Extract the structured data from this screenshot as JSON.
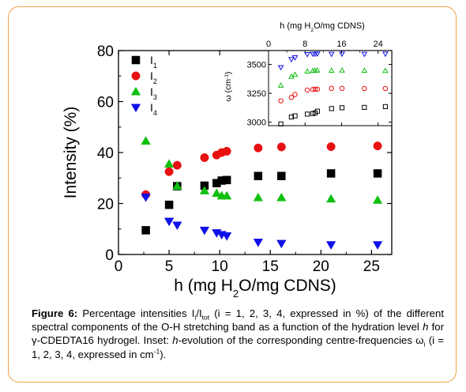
{
  "chart_data": [
    {
      "type": "scatter",
      "xlabel": "h (mg H2O/mg CDNS)",
      "xlabel_parts": [
        "h (mg H",
        "2",
        "O/mg CDNS)"
      ],
      "ylabel": "Intensity (%)",
      "xlim": [
        0,
        27
      ],
      "ylim": [
        0,
        80
      ],
      "xticks": [
        0,
        5,
        10,
        15,
        20,
        25
      ],
      "yticks": [
        0,
        20,
        40,
        60,
        80
      ],
      "grid": false,
      "legend": "top-left",
      "series": [
        {
          "name": "I1",
          "label_main": "I",
          "label_sub": "1",
          "marker": "square",
          "color": "#000000",
          "x": [
            2.7,
            5.0,
            5.8,
            8.5,
            9.7,
            10.2,
            10.7,
            13.8,
            16.1,
            21.0,
            25.6
          ],
          "y": [
            9.5,
            19.5,
            26.8,
            27.0,
            28.0,
            29.0,
            29.2,
            30.8,
            30.8,
            31.8,
            31.8
          ]
        },
        {
          "name": "I2",
          "label_main": "I",
          "label_sub": "2",
          "marker": "circle",
          "color": "#e81010",
          "x": [
            2.7,
            5.0,
            5.8,
            8.5,
            9.7,
            10.2,
            10.7,
            13.8,
            16.1,
            21.0,
            25.6
          ],
          "y": [
            23.5,
            32.5,
            35.0,
            38.0,
            39.0,
            40.0,
            40.5,
            41.8,
            42.2,
            42.3,
            42.6
          ]
        },
        {
          "name": "I3",
          "label_main": "I",
          "label_sub": "3",
          "marker": "triangle-up",
          "color": "#10c010",
          "x": [
            2.7,
            5.0,
            5.8,
            8.5,
            9.7,
            10.2,
            10.7,
            13.8,
            16.1,
            21.0,
            25.6
          ],
          "y": [
            44.5,
            35.5,
            26.8,
            25.0,
            24.0,
            23.0,
            23.0,
            22.3,
            22.3,
            21.8,
            21.3
          ]
        },
        {
          "name": "I4",
          "label_main": "I",
          "label_sub": "4",
          "marker": "triangle-down",
          "color": "#1010e8",
          "x": [
            2.7,
            5.0,
            5.8,
            8.5,
            9.7,
            10.2,
            10.7,
            13.8,
            16.1,
            21.0,
            25.6
          ],
          "y": [
            22.5,
            13.0,
            11.5,
            9.5,
            8.5,
            7.8,
            7.3,
            4.8,
            4.3,
            3.8,
            3.8
          ]
        }
      ]
    },
    {
      "type": "scatter",
      "inset": true,
      "xlabel": "h (mg H2O/mg CDNS)",
      "xlabel_parts": [
        "h (mg H",
        "2",
        "O/mg CDNS)"
      ],
      "ylabel": "ω (cm⁻¹)",
      "ylabel_parts": [
        "ω (cm",
        "-1",
        ")"
      ],
      "xlim": [
        0,
        27
      ],
      "ylim": [
        2970,
        3620
      ],
      "xticks": [
        0,
        8,
        16,
        24
      ],
      "xtick_labels": [
        "0",
        "8",
        "16",
        "24"
      ],
      "minor_xticks": [
        4,
        12,
        20
      ],
      "yticks": [
        3000,
        3250,
        3500
      ],
      "ytick_labels": [
        "3000",
        "3250",
        "3500"
      ],
      "xaxis_position": "top",
      "grid": false,
      "series": [
        {
          "name": "ω1",
          "marker": "square-open",
          "color": "#000000",
          "x": [
            2.7,
            5.0,
            5.8,
            8.5,
            9.7,
            10.2,
            10.7,
            13.8,
            16.1,
            21.0,
            25.6
          ],
          "y": [
            2985,
            3045,
            3055,
            3070,
            3075,
            3080,
            3095,
            3118,
            3125,
            3128,
            3135
          ]
        },
        {
          "name": "ω2",
          "marker": "circle-open",
          "color": "#e81010",
          "x": [
            2.7,
            5.0,
            5.8,
            8.5,
            9.7,
            10.2,
            10.7,
            13.8,
            16.1,
            21.0,
            25.6
          ],
          "y": [
            3185,
            3215,
            3240,
            3278,
            3283,
            3286,
            3286,
            3293,
            3293,
            3292,
            3292
          ]
        },
        {
          "name": "ω3",
          "marker": "triangle-up-open",
          "color": "#10c010",
          "x": [
            2.7,
            5.0,
            5.8,
            8.5,
            9.7,
            10.2,
            10.7,
            13.8,
            16.1,
            21.0,
            25.6
          ],
          "y": [
            3318,
            3395,
            3412,
            3440,
            3445,
            3447,
            3449,
            3447,
            3449,
            3447,
            3445
          ]
        },
        {
          "name": "ω4",
          "marker": "triangle-down-open",
          "color": "#1010e8",
          "x": [
            2.7,
            5.0,
            5.8,
            8.5,
            9.7,
            10.2,
            10.7,
            13.8,
            16.1,
            21.0,
            25.6
          ],
          "y": [
            3475,
            3545,
            3560,
            3588,
            3591,
            3591,
            3593,
            3590,
            3592,
            3590,
            3592
          ]
        }
      ]
    }
  ],
  "caption": {
    "label": "Figure 6:",
    "segments": [
      {
        "t": " Percentage intensities I"
      },
      {
        "t": "i",
        "sub": true
      },
      {
        "t": "/I"
      },
      {
        "t": "tot",
        "sub": true
      },
      {
        "t": " (i = 1, 2, 3, 4, expressed in %) of the different spectral components of the O-H stretching band as a function of the hydration level "
      },
      {
        "t": "h",
        "italic": true
      },
      {
        "t": " for γ-CDEDTA16 hydrogel. Inset: "
      },
      {
        "t": "h",
        "italic": true
      },
      {
        "t": "-evolution of the corresponding centre-frequencies ω"
      },
      {
        "t": "i",
        "sub": true
      },
      {
        "t": " (i = 1, 2, 3, 4, expressed in cm"
      },
      {
        "t": "-1",
        "sup": true
      },
      {
        "t": ")."
      }
    ]
  }
}
